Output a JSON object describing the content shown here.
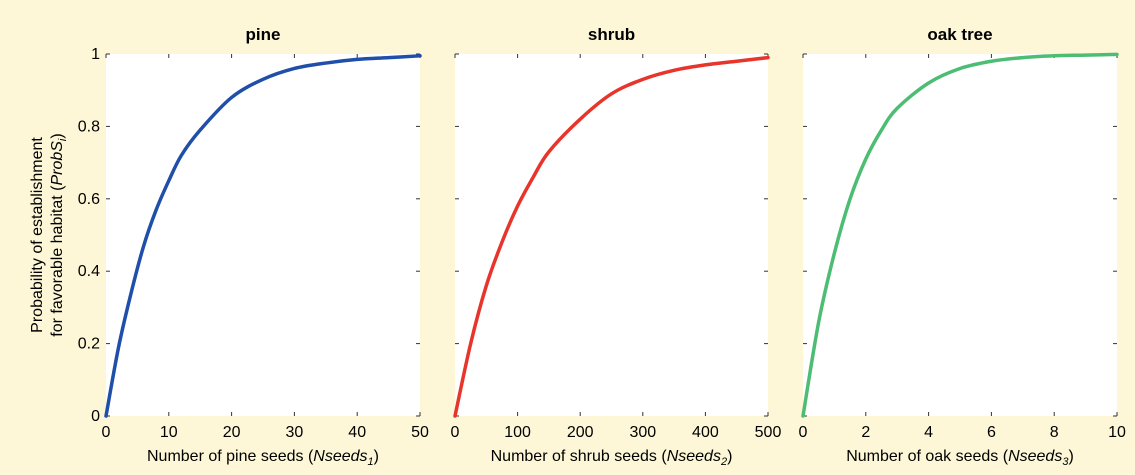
{
  "figure": {
    "ylabel_line1": "Probability of establishment",
    "ylabel_line2_prefix": "for favorable habitat (",
    "ylabel_line2_italic": "ProbS",
    "ylabel_line2_sub": "i",
    "ylabel_line2_suffix": ")"
  },
  "chart_data": [
    {
      "type": "line",
      "title": "pine",
      "xlabel_prefix": "Number of pine seeds (",
      "xlabel_italic": "Nseeds",
      "xlabel_sub": "1",
      "xlabel_suffix": ")",
      "xlim": [
        0,
        50
      ],
      "ylim": [
        0,
        1
      ],
      "xticks": [
        0,
        10,
        20,
        30,
        40,
        50
      ],
      "yticks": [
        0,
        0.2,
        0.4,
        0.6,
        0.8,
        1
      ],
      "color": "#1f4fa8",
      "series": [
        {
          "x": [
            0,
            2,
            4,
            6,
            8,
            10,
            12,
            15,
            20,
            25,
            30,
            35,
            40,
            45,
            50
          ],
          "y": [
            0,
            0.19,
            0.34,
            0.47,
            0.57,
            0.65,
            0.72,
            0.79,
            0.88,
            0.93,
            0.96,
            0.975,
            0.985,
            0.99,
            0.995
          ]
        }
      ]
    },
    {
      "type": "line",
      "title": "shrub",
      "xlabel_prefix": "Number of shrub seeds (",
      "xlabel_italic": "Nseeds",
      "xlabel_sub": "2",
      "xlabel_suffix": ")",
      "xlim": [
        0,
        500
      ],
      "ylim": [
        0,
        1
      ],
      "xticks": [
        0,
        100,
        200,
        300,
        400,
        500
      ],
      "yticks": [
        0,
        0.2,
        0.4,
        0.6,
        0.8,
        1
      ],
      "color": "#e8352b",
      "series": [
        {
          "x": [
            0,
            25,
            50,
            75,
            100,
            125,
            150,
            200,
            250,
            300,
            350,
            400,
            450,
            500
          ],
          "y": [
            0,
            0.2,
            0.36,
            0.48,
            0.58,
            0.66,
            0.73,
            0.82,
            0.89,
            0.93,
            0.955,
            0.97,
            0.98,
            0.99
          ]
        }
      ]
    },
    {
      "type": "line",
      "title": "oak tree",
      "xlabel_prefix": "Number of oak seeds (",
      "xlabel_italic": "Nseeds",
      "xlabel_sub": "3",
      "xlabel_suffix": ")",
      "xlim": [
        0,
        10
      ],
      "ylim": [
        0,
        1
      ],
      "xticks": [
        0,
        2,
        4,
        6,
        8,
        10
      ],
      "yticks": [
        0,
        0.2,
        0.4,
        0.6,
        0.8,
        1
      ],
      "color": "#4dbd74",
      "series": [
        {
          "x": [
            0,
            0.5,
            1,
            1.5,
            2,
            2.5,
            3,
            4,
            5,
            6,
            7,
            8,
            9,
            10
          ],
          "y": [
            0,
            0.26,
            0.45,
            0.6,
            0.71,
            0.79,
            0.85,
            0.92,
            0.96,
            0.98,
            0.99,
            0.995,
            0.997,
            0.999
          ]
        }
      ]
    }
  ]
}
